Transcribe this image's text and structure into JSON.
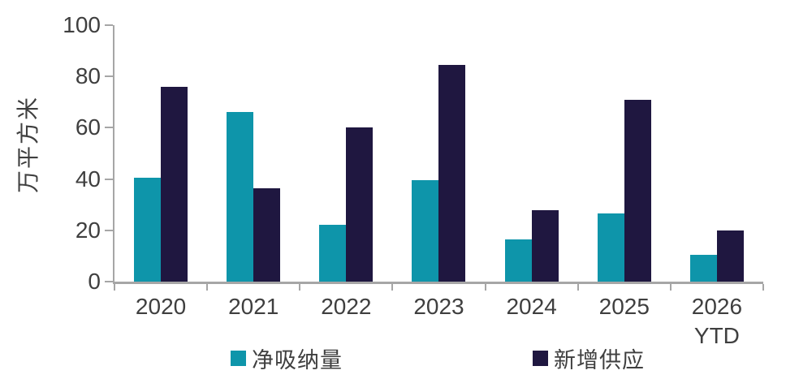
{
  "chart_data": {
    "type": "bar",
    "title": "",
    "ylabel": "万平方米",
    "xlabel": "",
    "categories": [
      "2020",
      "2021",
      "2022",
      "2023",
      "2024",
      "2025",
      "2026\nYTD"
    ],
    "series": [
      {
        "name": "净吸纳量",
        "color": "#0E95AA",
        "values": [
          40.5,
          66,
          22,
          39.5,
          16.5,
          26.5,
          10.5
        ]
      },
      {
        "name": "新增供应",
        "color": "#1F1740",
        "values": [
          76,
          36.5,
          60,
          84.5,
          28,
          71,
          20
        ]
      }
    ],
    "ylim": [
      0,
      100
    ],
    "yticks": [
      0,
      20,
      40,
      60,
      80,
      100
    ],
    "grid": false,
    "legend_position": "bottom"
  },
  "colors": {
    "axis": "#A6A6A6",
    "text": "#3F3F3F",
    "background": "#FFFFFF"
  }
}
